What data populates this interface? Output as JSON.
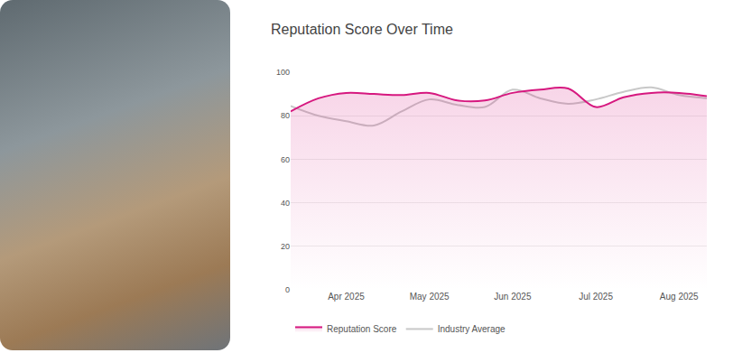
{
  "chart_data": {
    "type": "line",
    "title": "Reputation Score Over Time",
    "categories": [
      null,
      null,
      "Apr 2025",
      null,
      null,
      "May 2025",
      null,
      null,
      "Jun 2025",
      null,
      null,
      "Jul 2025",
      null,
      null,
      "Aug 2025",
      null
    ],
    "series": [
      {
        "name": "Reputation Score",
        "color": "#d6187f",
        "values": [
          82,
          88,
          90.5,
          90,
          89.5,
          90.5,
          87,
          87,
          90.5,
          92,
          92.5,
          84,
          88.5,
          90.5,
          90.5,
          89
        ]
      },
      {
        "name": "Industry Average",
        "color": "#c8c8c8",
        "values": [
          84.5,
          80,
          77.5,
          75.5,
          82,
          87.5,
          85,
          84,
          92,
          88,
          85.5,
          87.5,
          91,
          93,
          89.5,
          88
        ]
      }
    ],
    "ylim": [
      0,
      100
    ],
    "yticks": [
      0,
      20,
      40,
      60,
      80,
      100
    ],
    "grid": true,
    "legend": "bottom"
  }
}
